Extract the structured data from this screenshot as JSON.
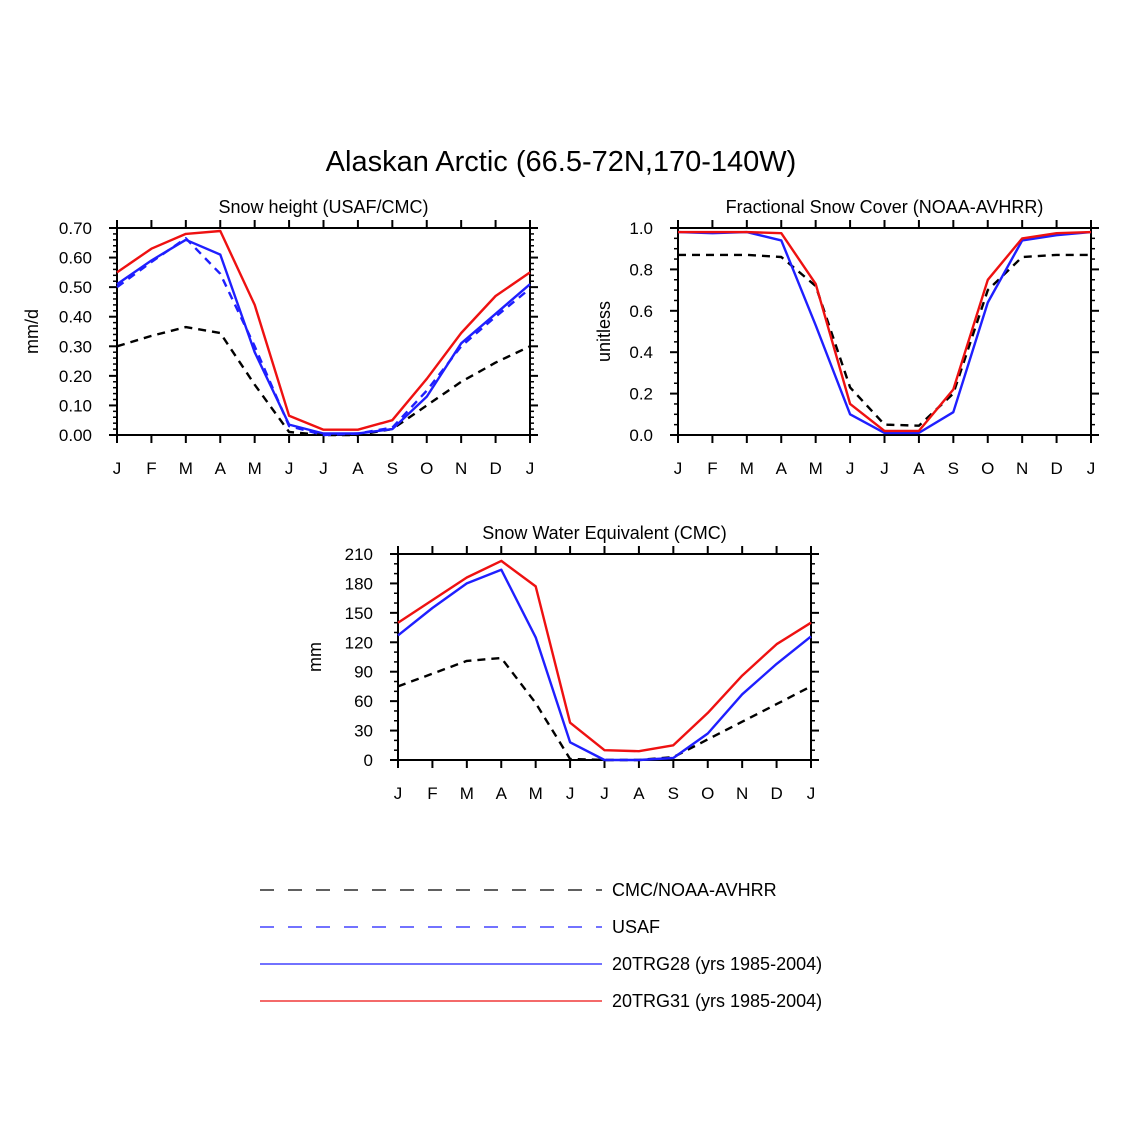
{
  "figure_title": "Alaskan Arctic (66.5-72N,170-140W)",
  "chart_data": [
    {
      "type": "line",
      "title": "Snow height (USAF/CMC)",
      "xlabel": "",
      "ylabel": "mm/d",
      "categories": [
        "J",
        "F",
        "M",
        "A",
        "M",
        "J",
        "J",
        "A",
        "S",
        "O",
        "N",
        "D",
        "J"
      ],
      "ylim": [
        0,
        0.7
      ],
      "yticks": [
        0,
        0.1,
        0.2,
        0.3,
        0.4,
        0.5,
        0.6,
        0.7
      ],
      "ytick_labels": [
        "0.00",
        "0.10",
        "0.20",
        "0.30",
        "0.40",
        "0.50",
        "0.60",
        "0.70"
      ],
      "series": [
        {
          "name": "CMC/NOAA-AVHRR",
          "color": "#000000",
          "dash": "dashed",
          "values": [
            0.3,
            0.335,
            0.365,
            0.345,
            0.17,
            0.01,
            0.0,
            0.0,
            0.02,
            0.1,
            0.18,
            0.245,
            0.3
          ]
        },
        {
          "name": "USAF",
          "color": "#1f1fff",
          "dash": "dashed",
          "values": [
            0.5,
            0.585,
            0.665,
            0.545,
            0.3,
            0.03,
            0.0,
            0.005,
            0.025,
            0.15,
            0.3,
            0.4,
            0.495
          ]
        },
        {
          "name": "20TRG28 (yrs 1985-2004)",
          "color": "#1f1fff",
          "dash": "solid",
          "values": [
            0.51,
            0.59,
            0.66,
            0.61,
            0.28,
            0.035,
            0.005,
            0.005,
            0.02,
            0.13,
            0.31,
            0.41,
            0.51
          ]
        },
        {
          "name": "20TRG31 (yrs 1985-2004)",
          "color": "#ee1111",
          "dash": "solid",
          "values": [
            0.55,
            0.63,
            0.68,
            0.69,
            0.44,
            0.065,
            0.018,
            0.018,
            0.05,
            0.19,
            0.345,
            0.47,
            0.55
          ]
        }
      ]
    },
    {
      "type": "line",
      "title": "Fractional Snow Cover (NOAA-AVHRR)",
      "xlabel": "",
      "ylabel": "unitless",
      "categories": [
        "J",
        "F",
        "M",
        "A",
        "M",
        "J",
        "J",
        "A",
        "S",
        "O",
        "N",
        "D",
        "J"
      ],
      "ylim": [
        0,
        1.0
      ],
      "yticks": [
        0,
        0.2,
        0.4,
        0.6,
        0.8,
        1.0
      ],
      "ytick_labels": [
        "0.0",
        "0.2",
        "0.4",
        "0.6",
        "0.8",
        "1.0"
      ],
      "series": [
        {
          "name": "CMC/NOAA-AVHRR",
          "color": "#000000",
          "dash": "dashed",
          "values": [
            0.87,
            0.87,
            0.87,
            0.86,
            0.72,
            0.23,
            0.05,
            0.045,
            0.2,
            0.7,
            0.86,
            0.87,
            0.87
          ]
        },
        {
          "name": "20TRG28 (yrs 1985-2004)",
          "color": "#1f1fff",
          "dash": "solid",
          "values": [
            0.98,
            0.975,
            0.98,
            0.94,
            0.53,
            0.1,
            0.01,
            0.01,
            0.11,
            0.64,
            0.94,
            0.965,
            0.98
          ]
        },
        {
          "name": "20TRG31 (yrs 1985-2004)",
          "color": "#ee1111",
          "dash": "solid",
          "values": [
            0.98,
            0.98,
            0.98,
            0.975,
            0.73,
            0.15,
            0.02,
            0.02,
            0.22,
            0.75,
            0.95,
            0.975,
            0.98
          ]
        }
      ]
    },
    {
      "type": "line",
      "title": "Snow Water Equivalent (CMC)",
      "xlabel": "",
      "ylabel": "mm",
      "categories": [
        "J",
        "F",
        "M",
        "A",
        "M",
        "J",
        "J",
        "A",
        "S",
        "O",
        "N",
        "D",
        "J"
      ],
      "ylim": [
        0,
        210
      ],
      "yticks": [
        0,
        30,
        60,
        90,
        120,
        150,
        180,
        210
      ],
      "ytick_labels": [
        "0",
        "30",
        "60",
        "90",
        "120",
        "150",
        "180",
        "210"
      ],
      "series": [
        {
          "name": "CMC/NOAA-AVHRR",
          "color": "#000000",
          "dash": "dashed",
          "values": [
            75,
            88,
            101,
            104,
            58,
            1,
            0,
            0,
            3,
            21,
            39,
            57,
            75
          ]
        },
        {
          "name": "20TRG28 (yrs 1985-2004)",
          "color": "#1f1fff",
          "dash": "solid",
          "values": [
            127,
            155,
            180,
            194,
            125,
            18,
            0,
            0,
            2,
            27,
            67,
            98,
            126
          ]
        },
        {
          "name": "20TRG31 (yrs 1985-2004)",
          "color": "#ee1111",
          "dash": "solid",
          "values": [
            140,
            163,
            186,
            203,
            177,
            38,
            10,
            9,
            15,
            48,
            86,
            118,
            140
          ]
        }
      ]
    }
  ],
  "legend": [
    {
      "label": "CMC/NOAA-AVHRR",
      "color": "#000000",
      "dash": "dashed"
    },
    {
      "label": "USAF",
      "color": "#1f1fff",
      "dash": "dashed"
    },
    {
      "label": "20TRG28 (yrs 1985-2004)",
      "color": "#1f1fff",
      "dash": "solid"
    },
    {
      "label": "20TRG31 (yrs 1985-2004)",
      "color": "#ee1111",
      "dash": "solid"
    }
  ]
}
